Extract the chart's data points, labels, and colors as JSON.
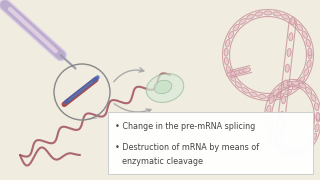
{
  "bg_color": "#f0ece0",
  "text_box_color": "#ffffff",
  "text_box_edge_color": "#cccccc",
  "bullet1": "Change in the pre-mRNA splicing",
  "bullet2": "Destruction of mRNA by means of",
  "bullet2b": "enzymatic cleavage",
  "bullet_color": "#444444",
  "text_fontsize": 5.8,
  "dna_color": "#c8909a",
  "dna_fill": "#e8c8cc",
  "strand_color": "#a05060",
  "circle_color": "#888888",
  "oligo_blue": "#4466cc",
  "oligo_red": "#884444",
  "arrow_color": "#aaaaaa",
  "syringe_fill": "#d8c8e8",
  "syringe_line": "#aa99bb",
  "cell_fill": "#d8ead8",
  "cell_edge": "#99bb99",
  "line_color": "#aaaaaa"
}
